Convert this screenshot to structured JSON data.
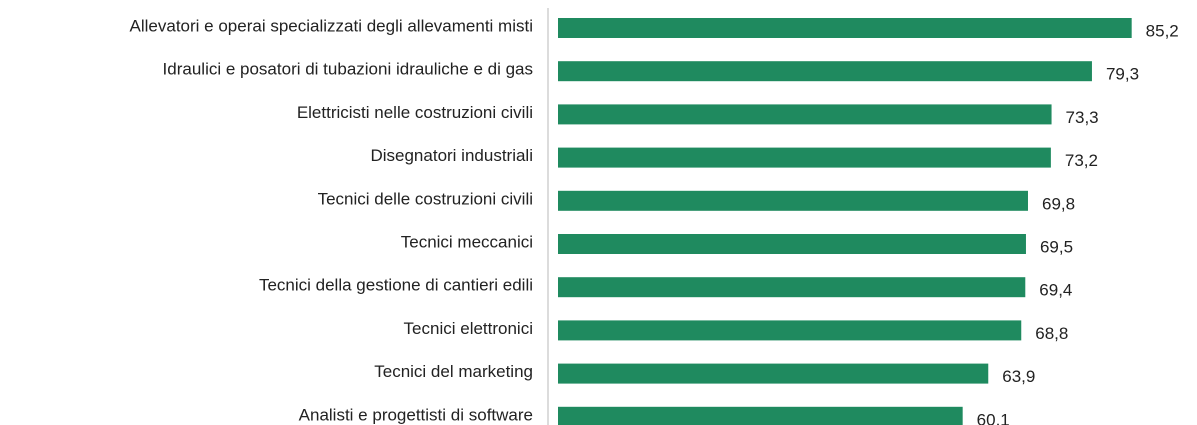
{
  "chart_data": {
    "type": "bar",
    "orientation": "horizontal",
    "categories": [
      "Allevatori e operai specializzati degli allevamenti misti",
      "Idraulici e posatori di tubazioni idrauliche e di gas",
      "Elettricisti nelle costruzioni civili",
      "Disegnatori industriali",
      "Tecnici delle costruzioni civili",
      "Tecnici meccanici",
      "Tecnici della gestione di cantieri edili",
      "Tecnici elettronici",
      "Tecnici del marketing",
      "Analisti e progettisti di software"
    ],
    "values": [
      85.2,
      79.3,
      73.3,
      73.2,
      69.8,
      69.5,
      69.4,
      68.8,
      63.9,
      60.1
    ],
    "value_labels": [
      "85,2",
      "79,3",
      "73,3",
      "73,2",
      "69,8",
      "69,5",
      "69,4",
      "68,8",
      "63,9",
      "60,1"
    ],
    "color": "#1f8a5f",
    "xlim": [
      0,
      90
    ]
  }
}
